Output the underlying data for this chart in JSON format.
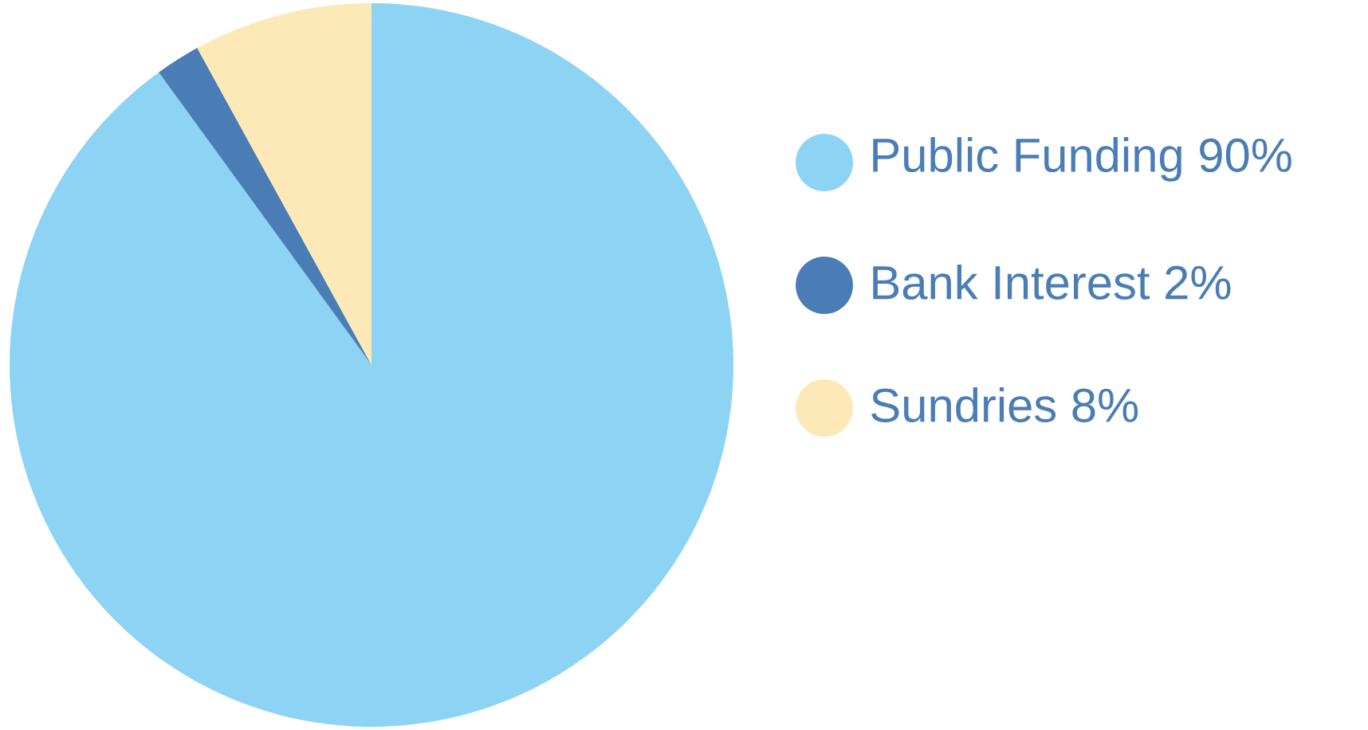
{
  "chart_data": {
    "type": "pie",
    "categories": [
      "Public Funding 90%",
      "Bank Interest 2%",
      "Sundries 8%"
    ],
    "values": [
      90,
      2,
      8
    ],
    "colors": [
      "#8dd3f3",
      "#4a7db5",
      "#fde9b8"
    ],
    "legend": "right"
  }
}
